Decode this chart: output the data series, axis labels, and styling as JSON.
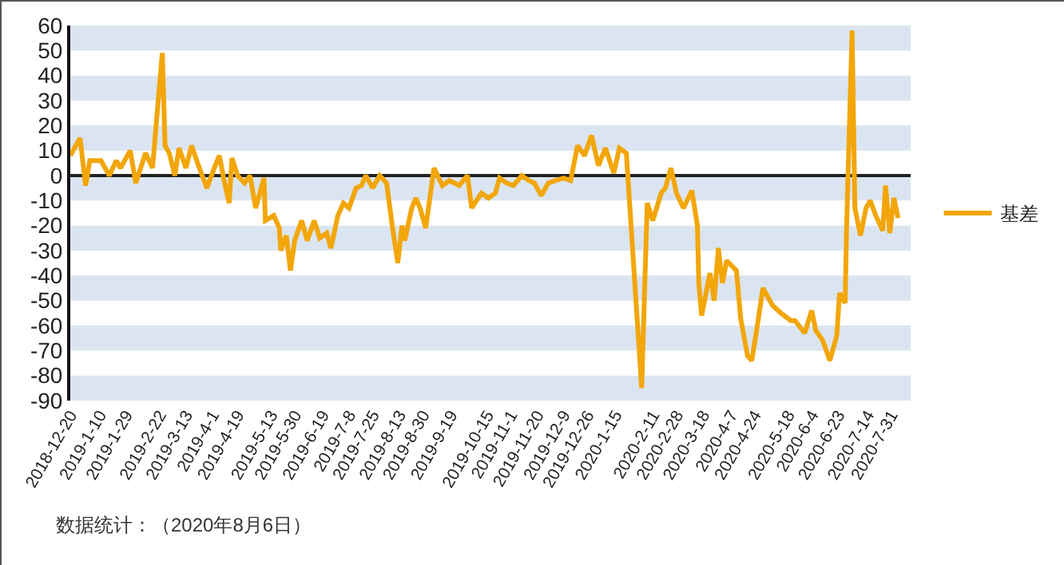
{
  "chart_data": {
    "type": "line",
    "x": [
      "2018-12-20",
      "2018-12-27",
      "2018-12-31",
      "2019-01-03",
      "2019-01-11",
      "2019-01-17",
      "2019-01-22",
      "2019-01-25",
      "2019-02-01",
      "2019-02-05",
      "2019-02-12",
      "2019-02-17",
      "2019-02-24",
      "2019-02-26",
      "2019-03-01",
      "2019-03-05",
      "2019-03-08",
      "2019-03-13",
      "2019-03-17",
      "2019-03-22",
      "2019-03-26",
      "2019-03-28",
      "2019-04-03",
      "2019-04-06",
      "2019-04-09",
      "2019-04-13",
      "2019-04-15",
      "2019-04-19",
      "2019-04-24",
      "2019-04-28",
      "2019-05-02",
      "2019-05-08",
      "2019-05-09",
      "2019-05-15",
      "2019-05-19",
      "2019-05-20",
      "2019-05-24",
      "2019-05-27",
      "2019-05-30",
      "2019-06-04",
      "2019-06-08",
      "2019-06-13",
      "2019-06-17",
      "2019-06-22",
      "2019-06-25",
      "2019-06-30",
      "2019-07-04",
      "2019-07-08",
      "2019-07-13",
      "2019-07-17",
      "2019-07-20",
      "2019-07-25",
      "2019-07-30",
      "2019-08-04",
      "2019-08-08",
      "2019-08-12",
      "2019-08-15",
      "2019-08-17",
      "2019-08-22",
      "2019-08-25",
      "2019-08-28",
      "2019-09-01",
      "2019-09-07",
      "2019-09-13",
      "2019-09-18",
      "2019-09-25",
      "2019-10-01",
      "2019-10-04",
      "2019-10-11",
      "2019-10-16",
      "2019-10-21",
      "2019-10-24",
      "2019-10-29",
      "2019-11-03",
      "2019-11-09",
      "2019-11-14",
      "2019-11-18",
      "2019-11-23",
      "2019-11-28",
      "2019-12-03",
      "2019-12-09",
      "2019-12-14",
      "2019-12-19",
      "2019-12-24",
      "2019-12-29",
      "2020-01-03",
      "2020-01-08",
      "2020-01-14",
      "2020-01-18",
      "2020-01-23",
      "2020-02-03",
      "2020-02-07",
      "2020-02-11",
      "2020-02-17",
      "2020-02-20",
      "2020-02-24",
      "2020-02-28",
      "2020-03-04",
      "2020-03-10",
      "2020-03-14",
      "2020-03-15",
      "2020-03-17",
      "2020-03-23",
      "2020-03-26",
      "2020-03-29",
      "2020-04-01",
      "2020-04-04",
      "2020-04-11",
      "2020-04-14",
      "2020-04-19",
      "2020-04-22",
      "2020-04-26",
      "2020-04-30",
      "2020-05-07",
      "2020-05-13",
      "2020-05-20",
      "2020-05-23",
      "2020-05-30",
      "2020-06-04",
      "2020-06-07",
      "2020-06-12",
      "2020-06-17",
      "2020-06-22",
      "2020-06-24",
      "2020-06-28",
      "2020-06-29",
      "2020-07-03",
      "2020-07-05",
      "2020-07-09",
      "2020-07-13",
      "2020-07-16",
      "2020-07-20",
      "2020-07-25",
      "2020-07-27",
      "2020-07-30",
      "2020-08-02",
      "2020-08-05"
    ],
    "series": [
      {
        "name": "基差",
        "color": "#f2a60a",
        "values": [
          8,
          15,
          -4,
          6,
          6,
          0,
          6,
          3,
          10,
          -3,
          9,
          3,
          49,
          12,
          9,
          0,
          11,
          3,
          12,
          4,
          -2,
          -5,
          4,
          8,
          -1,
          -11,
          7,
          0,
          -3,
          0,
          -13,
          -1,
          -18,
          -16,
          -21,
          -30,
          -24,
          -38,
          -26,
          -18,
          -26,
          -18,
          -25,
          -23,
          -29,
          -16,
          -11,
          -13,
          -5,
          -4,
          0,
          -5,
          0,
          -3,
          -20,
          -35,
          -20,
          -26,
          -13,
          -9,
          -13,
          -21,
          3,
          -4,
          -2,
          -4,
          0,
          -13,
          -7,
          -9,
          -7,
          -1,
          -3,
          -4,
          0,
          -2,
          -3,
          -8,
          -3,
          -2,
          -1,
          -2,
          12,
          8,
          16,
          4,
          11,
          1,
          11,
          9,
          -85,
          -11,
          -18,
          -7,
          -5,
          3,
          -7,
          -13,
          -6,
          -20,
          -43,
          -56,
          -39,
          -50,
          -29,
          -43,
          -34,
          -38,
          -57,
          -72,
          -74,
          -60,
          -45,
          -52,
          -55,
          -58,
          -58,
          -63,
          -54,
          -62,
          -66,
          -74,
          -64,
          -47,
          -51,
          -22,
          58,
          -13,
          -24,
          -13,
          -10,
          -16,
          -22,
          -4,
          -23,
          -9,
          -17
        ]
      }
    ],
    "xlim": [
      "2018-12-20",
      "2020-08-14"
    ],
    "xticks": [
      {
        "value": "2018-12-20",
        "label": "2018-12-20"
      },
      {
        "value": "2019-01-10",
        "label": "2019-1-10"
      },
      {
        "value": "2019-01-29",
        "label": "2019-1-29"
      },
      {
        "value": "2019-02-22",
        "label": "2019-2-22"
      },
      {
        "value": "2019-03-13",
        "label": "2019-3-13"
      },
      {
        "value": "2019-04-01",
        "label": "2019-4-1"
      },
      {
        "value": "2019-04-19",
        "label": "2019-4-19"
      },
      {
        "value": "2019-05-13",
        "label": "2019-5-13"
      },
      {
        "value": "2019-05-30",
        "label": "2019-5-30"
      },
      {
        "value": "2019-06-19",
        "label": "2019-6-19"
      },
      {
        "value": "2019-07-08",
        "label": "2019-7-8"
      },
      {
        "value": "2019-07-25",
        "label": "2019-7-25"
      },
      {
        "value": "2019-08-13",
        "label": "2019-8-13"
      },
      {
        "value": "2019-08-30",
        "label": "2019-8-30"
      },
      {
        "value": "2019-09-19",
        "label": "2019-9-19"
      },
      {
        "value": "2019-10-15",
        "label": "2019-10-15"
      },
      {
        "value": "2019-11-01",
        "label": "2019-11-1"
      },
      {
        "value": "2019-11-20",
        "label": "2019-11-20"
      },
      {
        "value": "2019-12-09",
        "label": "2019-12-9"
      },
      {
        "value": "2019-12-26",
        "label": "2019-12-26"
      },
      {
        "value": "2020-01-15",
        "label": "2020-1-15"
      },
      {
        "value": "2020-02-11",
        "label": "2020-2-11"
      },
      {
        "value": "2020-02-28",
        "label": "2020-2-28"
      },
      {
        "value": "2020-03-18",
        "label": "2020-3-18"
      },
      {
        "value": "2020-04-07",
        "label": "2020-4-7"
      },
      {
        "value": "2020-04-24",
        "label": "2020-4-24"
      },
      {
        "value": "2020-05-18",
        "label": "2020-5-18"
      },
      {
        "value": "2020-06-04",
        "label": "2020-6-4"
      },
      {
        "value": "2020-06-23",
        "label": "2020-6-23"
      },
      {
        "value": "2020-07-14",
        "label": "2020-7-14"
      },
      {
        "value": "2020-07-31",
        "label": "2020-7-31"
      }
    ],
    "ylim": [
      -90,
      60
    ],
    "yticks": [
      -90,
      -80,
      -70,
      -60,
      -50,
      -40,
      -30,
      -20,
      -10,
      0,
      10,
      20,
      30,
      40,
      50,
      60
    ],
    "grid": "y",
    "legend": "right",
    "annotations": [
      "数据统计：（2020年8月6日）"
    ]
  }
}
